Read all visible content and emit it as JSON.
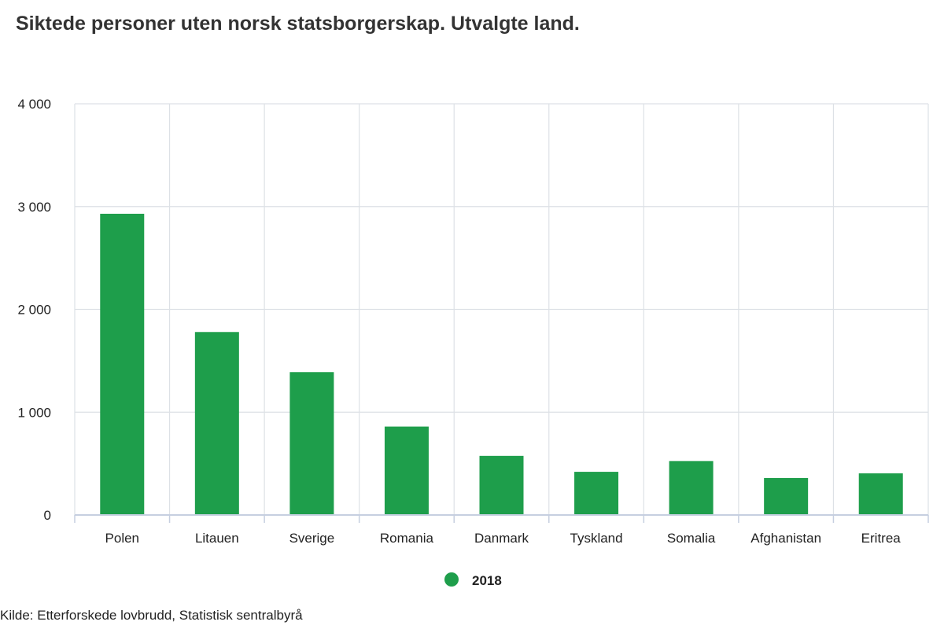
{
  "chart_data": {
    "type": "bar",
    "title": "Siktede personer uten norsk statsborgerskap. Utvalgte land.",
    "categories": [
      "Polen",
      "Litauen",
      "Sverige",
      "Romania",
      "Danmark",
      "Tyskland",
      "Somalia",
      "Afghanistan",
      "Eritrea"
    ],
    "series": [
      {
        "name": "2018",
        "values": [
          2930,
          1780,
          1390,
          860,
          575,
          420,
          525,
          360,
          405
        ],
        "color": "#1e9e4b"
      }
    ],
    "ylim": [
      0,
      4000
    ],
    "yticks": [
      0,
      1000,
      2000,
      3000,
      4000
    ],
    "ytick_labels": [
      "0",
      "1 000",
      "2 000",
      "3 000",
      "4 000"
    ],
    "grid": true,
    "legend_position": "bottom-center"
  },
  "source": "Kilde: Etterforskede lovbrudd, Statistisk sentralbyrå"
}
